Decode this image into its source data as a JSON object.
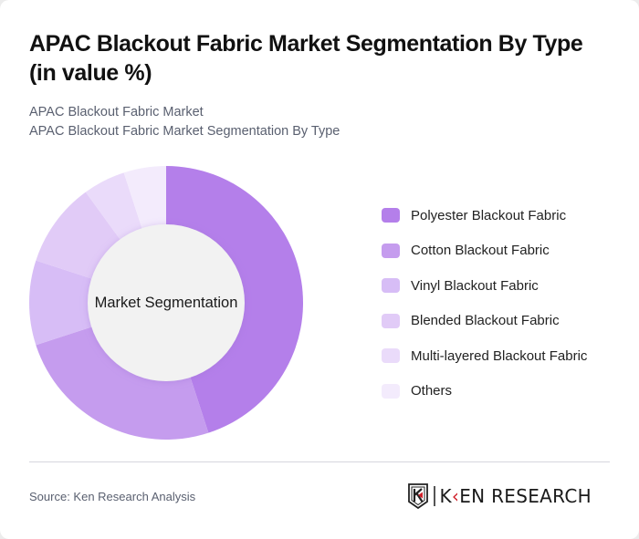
{
  "header": {
    "title": "APAC Blackout Fabric Market Segmentation By Type (in value %)",
    "subtitle_line1": "APAC Blackout Fabric Market",
    "subtitle_line2": "APAC Blackout Fabric Market Segmentation By Type"
  },
  "chart": {
    "center_label": "Market Segmentation"
  },
  "legend": {
    "items": [
      {
        "label": "Polyester Blackout Fabric",
        "color": "#b47fea"
      },
      {
        "label": "Cotton Blackout Fabric",
        "color": "#c59cee"
      },
      {
        "label": "Vinyl Blackout Fabric",
        "color": "#d7bdf6"
      },
      {
        "label": "Blended Blackout Fabric",
        "color": "#e1cbf7"
      },
      {
        "label": "Multi-layered Blackout Fabric",
        "color": "#eadbfa"
      },
      {
        "label": "Others",
        "color": "#f3ebfc"
      }
    ]
  },
  "footer": {
    "source": "Source: Ken Research Analysis",
    "logo_text_k": "K",
    "logo_text_rest": "EN RESEARCH"
  },
  "chart_data": {
    "type": "pie",
    "subtype": "donut",
    "title": "APAC Blackout Fabric Market Segmentation By Type (in value %)",
    "center_label": "Market Segmentation",
    "categories": [
      "Polyester Blackout Fabric",
      "Cotton Blackout Fabric",
      "Vinyl Blackout Fabric",
      "Blended Blackout Fabric",
      "Multi-layered Blackout Fabric",
      "Others"
    ],
    "values": [
      45,
      25,
      10,
      10,
      5,
      5
    ],
    "colors": [
      "#b47fea",
      "#c59cee",
      "#d7bdf6",
      "#e1cbf7",
      "#eadbfa",
      "#f3ebfc"
    ],
    "unit": "%",
    "start_angle": "12 o'clock, clockwise",
    "legend_position": "right"
  }
}
